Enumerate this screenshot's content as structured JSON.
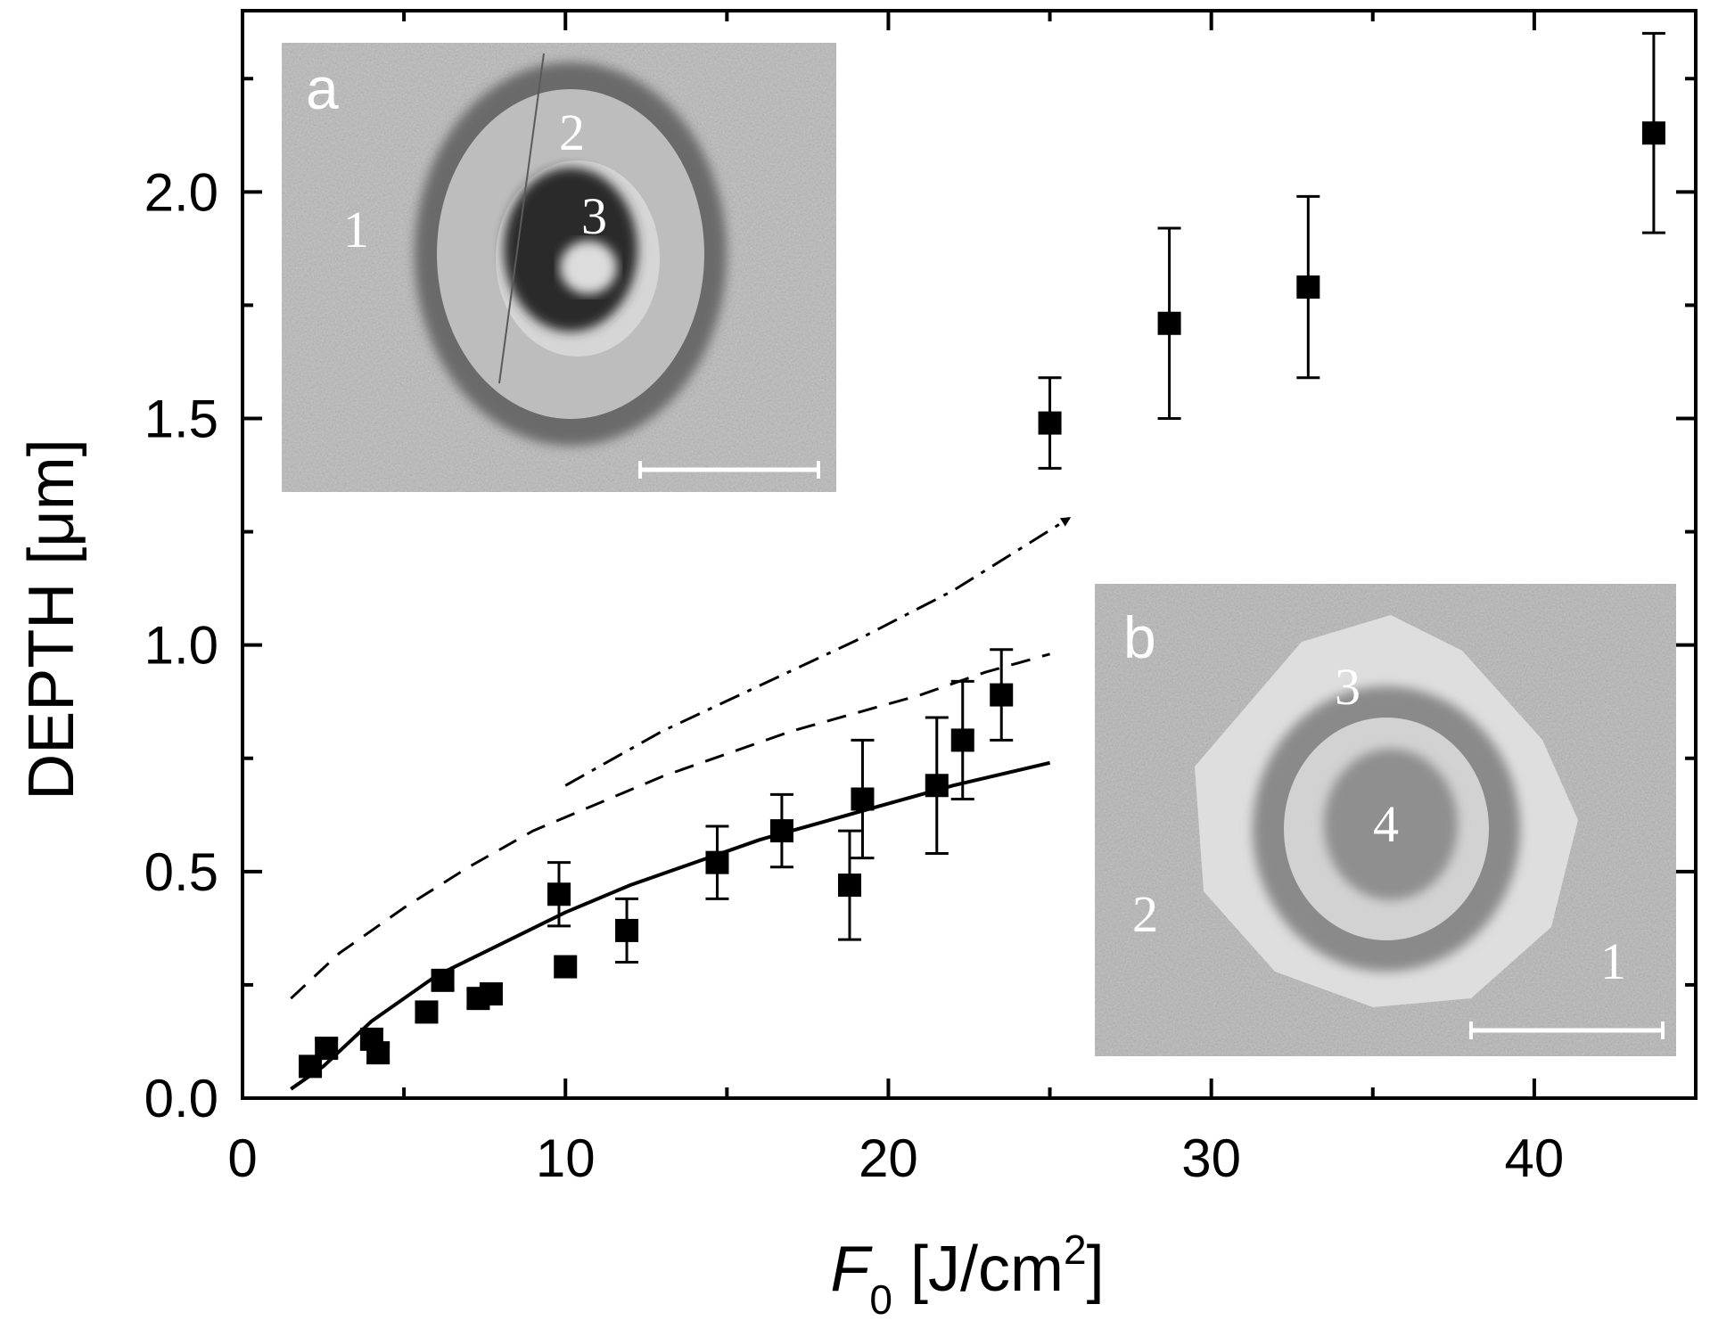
{
  "chart_data": {
    "type": "scatter",
    "title": "",
    "xlabel": {
      "symbol": "F",
      "subscript": "0",
      "unit_open": " [J/cm",
      "unit_sup": "2",
      "unit_close": "]"
    },
    "ylabel": "DEPTH [μm]",
    "xlim": [
      0,
      45
    ],
    "ylim": [
      0,
      2.4
    ],
    "x_ticks": [
      "0",
      "10",
      "20",
      "30",
      "40"
    ],
    "y_ticks": [
      "0.0",
      "0.5",
      "1.0",
      "1.5",
      "2.0"
    ],
    "grid": false,
    "series": [
      {
        "style": "square-markers-with-error-bars",
        "points": [
          {
            "x": 2.1,
            "y": 0.07,
            "err": 0.015
          },
          {
            "x": 2.6,
            "y": 0.11,
            "err": 0.02
          },
          {
            "x": 4.0,
            "y": 0.13,
            "err": 0.02
          },
          {
            "x": 4.2,
            "y": 0.1,
            "err": 0.02
          },
          {
            "x": 5.7,
            "y": 0.19,
            "err": 0.02
          },
          {
            "x": 6.2,
            "y": 0.26,
            "err": 0.02
          },
          {
            "x": 7.3,
            "y": 0.22,
            "err": 0.02
          },
          {
            "x": 7.7,
            "y": 0.23,
            "err": 0.02
          },
          {
            "x": 9.8,
            "y": 0.45,
            "err": 0.07
          },
          {
            "x": 10.0,
            "y": 0.29,
            "err": 0.0
          },
          {
            "x": 11.9,
            "y": 0.37,
            "err": 0.07
          },
          {
            "x": 14.7,
            "y": 0.52,
            "err": 0.08
          },
          {
            "x": 16.7,
            "y": 0.59,
            "err": 0.08
          },
          {
            "x": 18.8,
            "y": 0.47,
            "err": 0.12
          },
          {
            "x": 19.2,
            "y": 0.66,
            "err": 0.13
          },
          {
            "x": 21.5,
            "y": 0.69,
            "err": 0.15
          },
          {
            "x": 22.3,
            "y": 0.79,
            "err": 0.13
          },
          {
            "x": 23.5,
            "y": 0.89,
            "err": 0.1
          },
          {
            "x": 25.0,
            "y": 1.49,
            "err": 0.1
          },
          {
            "x": 28.7,
            "y": 1.71,
            "err": 0.21
          },
          {
            "x": 33.0,
            "y": 1.79,
            "err": 0.2
          },
          {
            "x": 43.7,
            "y": 2.13,
            "err": 0.22
          }
        ]
      },
      {
        "style": "solid-line",
        "x": [
          1.5,
          2.5,
          4,
          6,
          8,
          10,
          12,
          14,
          16,
          18,
          20,
          22,
          25
        ],
        "y": [
          0.02,
          0.07,
          0.17,
          0.27,
          0.34,
          0.41,
          0.47,
          0.52,
          0.57,
          0.61,
          0.65,
          0.69,
          0.74
        ]
      },
      {
        "style": "dashed-line",
        "x": [
          1.5,
          3,
          5,
          7,
          9,
          11,
          13,
          15,
          17,
          19,
          21,
          23,
          25
        ],
        "y": [
          0.22,
          0.32,
          0.42,
          0.51,
          0.59,
          0.65,
          0.71,
          0.76,
          0.81,
          0.85,
          0.89,
          0.94,
          0.98
        ]
      },
      {
        "style": "dash-dot-arrow",
        "x": [
          10,
          13,
          16,
          19,
          22,
          25.6
        ],
        "y": [
          0.69,
          0.81,
          0.91,
          1.01,
          1.12,
          1.28
        ]
      }
    ]
  },
  "insets": [
    {
      "letter": "a",
      "zones": [
        "1",
        "2",
        "3"
      ]
    },
    {
      "letter": "b",
      "zones": [
        "1",
        "2",
        "3",
        "4"
      ]
    }
  ]
}
